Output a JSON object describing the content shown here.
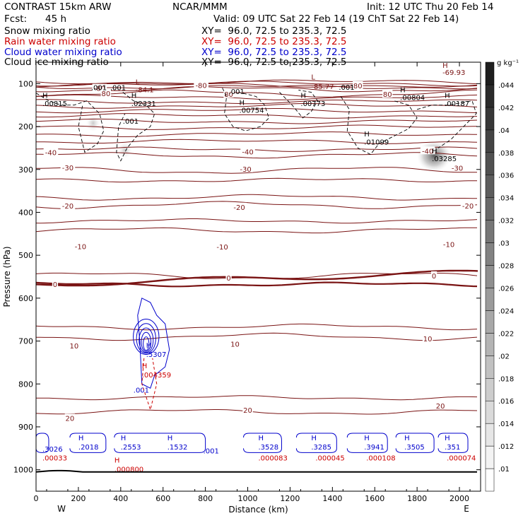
{
  "header": {
    "title": "CONTRAST 15km ARW",
    "center": "NCAR/MMM",
    "init": "Init: 12 UTC Thu 20 Feb 14",
    "fcst_label": "Fcst:",
    "fcst_value": "45 h",
    "valid": "Valid: 09 UTC Sat 22 Feb 14 (19 ChT Sat 22 Feb 14)"
  },
  "fields": [
    {
      "name": "Snow mixing ratio",
      "xy": "XY=  96.0, 72.5 to 235.3, 72.5",
      "color": "#000000"
    },
    {
      "name": "Rain water mixing ratio",
      "xy": "XY=  96.0, 72.5 to 235.3, 72.5",
      "color": "#cc0000"
    },
    {
      "name": "Cloud water mixing ratio",
      "xy": "XY=  96.0, 72.5 to 235.3, 72.5",
      "color": "#0000cc"
    },
    {
      "name": "Cloud ice mixing ratio",
      "xy": "XY=  96.0, 72.5 to 235.3, 72.5",
      "color": "#000000"
    }
  ],
  "chart_data": {
    "type": "cross-section",
    "xlabel": "Distance (km)",
    "ylabel": "Pressure (hPa)",
    "xlim": [
      0,
      2100
    ],
    "ylim": [
      1050,
      50
    ],
    "x_ticks": [
      0,
      200,
      400,
      600,
      800,
      1000,
      1200,
      1400,
      1600,
      1800,
      2000
    ],
    "y_ticks": [
      100,
      200,
      300,
      400,
      500,
      600,
      700,
      800,
      900,
      1000
    ],
    "left_end_label": "W",
    "right_end_label": "E",
    "colorbar": {
      "unit": "g kg⁻¹",
      "levels": [
        0.01,
        0.012,
        0.014,
        0.016,
        0.018,
        0.02,
        0.022,
        0.024,
        0.026,
        0.028,
        0.03,
        0.032,
        0.034,
        0.036,
        0.038,
        0.04,
        0.042,
        0.044
      ],
      "labels": [
        ".01",
        ".012",
        ".014",
        ".016",
        ".018",
        ".02",
        ".022",
        ".024",
        ".026",
        ".028",
        ".03",
        ".032",
        ".034",
        ".036",
        ".038",
        ".04",
        ".042",
        ".044"
      ]
    },
    "temperature_isotherms": [
      {
        "label": "-80",
        "p": 108
      },
      {
        "label": "-80",
        "p": 113
      },
      {
        "label": "-80",
        "p": 123
      },
      {
        "label": "-40",
        "p": 253
      },
      {
        "label": "-40",
        "p": 267
      },
      {
        "label": "-30",
        "p": 302
      },
      {
        "label": "-30",
        "p": 325
      },
      {
        "label": "-20",
        "p": 365
      },
      {
        "label": "-20",
        "p": 383
      },
      {
        "label": "-10",
        "p": 420
      },
      {
        "label": "-10",
        "p": 442
      },
      {
        "label": "0",
        "p": 548
      },
      {
        "label": "0",
        "p": 568
      },
      {
        "label": "10",
        "p": 667
      },
      {
        "label": "10",
        "p": 690
      },
      {
        "label": "20",
        "p": 832
      },
      {
        "label": "20",
        "p": 865
      }
    ],
    "isotherm_labels": [
      {
        "text": "-80",
        "x": 300,
        "p": 112
      },
      {
        "text": "-80",
        "x": 780,
        "p": 105
      },
      {
        "text": "80",
        "x": 330,
        "p": 124
      },
      {
        "text": "80",
        "x": 910,
        "p": 126
      },
      {
        "text": "80",
        "x": 1520,
        "p": 106
      },
      {
        "text": "80",
        "x": 1660,
        "p": 126
      },
      {
        "text": "-40",
        "x": 70,
        "p": 262
      },
      {
        "text": "-40",
        "x": 1000,
        "p": 260
      },
      {
        "text": "-40",
        "x": 1850,
        "p": 258
      },
      {
        "text": "-30",
        "x": 150,
        "p": 297
      },
      {
        "text": "-30",
        "x": 990,
        "p": 300
      },
      {
        "text": "-30",
        "x": 1990,
        "p": 298
      },
      {
        "text": "-20",
        "x": 150,
        "p": 386
      },
      {
        "text": "-20",
        "x": 960,
        "p": 389
      },
      {
        "text": "-20",
        "x": 2040,
        "p": 386
      },
      {
        "text": "-10",
        "x": 210,
        "p": 481
      },
      {
        "text": "-10",
        "x": 880,
        "p": 482
      },
      {
        "text": "-10",
        "x": 1950,
        "p": 476
      },
      {
        "text": "0",
        "x": 90,
        "p": 569
      },
      {
        "text": "0",
        "x": 910,
        "p": 554
      },
      {
        "text": "0",
        "x": 1880,
        "p": 549
      },
      {
        "text": "10",
        "x": 180,
        "p": 712
      },
      {
        "text": "10",
        "x": 940,
        "p": 708
      },
      {
        "text": "10",
        "x": 1850,
        "p": 696
      },
      {
        "text": "20",
        "x": 160,
        "p": 881
      },
      {
        "text": "20",
        "x": 1000,
        "p": 862
      },
      {
        "text": "20",
        "x": 1910,
        "p": 852
      }
    ],
    "snow_maxima": [
      {
        "text": "H",
        "x": 30,
        "p": 133,
        "v": ".00815",
        "vp": 152
      },
      {
        "text": "H",
        "x": 450,
        "p": 133,
        "v": ".02331",
        "vp": 152
      },
      {
        "text": "H",
        "x": 960,
        "p": 150,
        "v": ".00754",
        "vp": 168
      },
      {
        "text": "H",
        "x": 1250,
        "p": 133,
        "v": ".00773",
        "vp": 152
      },
      {
        "text": "H",
        "x": 1720,
        "p": 120,
        "v": ".00804",
        "vp": 138
      },
      {
        "text": "H",
        "x": 1930,
        "p": 133,
        "v": ".00187",
        "vp": 152
      },
      {
        "text": "H",
        "x": 1550,
        "p": 223,
        "v": ".01099",
        "vp": 242
      }
    ],
    "snow_value_labels": [
      {
        "text": ".001",
        "x": 260,
        "p": 115
      },
      {
        "text": ".001",
        "x": 350,
        "p": 115
      },
      {
        "text": ".001",
        "x": 910,
        "p": 124
      },
      {
        "text": ".001",
        "x": 1430,
        "p": 114
      },
      {
        "text": ".001",
        "x": 410,
        "p": 193
      }
    ],
    "upper_extrema": [
      {
        "text": "L",
        "x": 470,
        "p": 102,
        "v": "-84.1",
        "vp": 120
      },
      {
        "text": "L",
        "x": 1300,
        "p": 90,
        "v": "-85.77",
        "vp": 113
      },
      {
        "text": "H",
        "x": 1920,
        "p": 63,
        "v": "-69.93",
        "vp": 80
      }
    ],
    "ice_maximum": {
      "text": "H",
      "x": 1870,
      "p": 272,
      "v": ".03285"
    },
    "ice_contour_label": {
      "text": "-40",
      "x": 1850,
      "p": 258
    },
    "rain_maxima": [
      {
        "text": "H",
        "x": 500,
        "p": 770,
        "v": ".004359"
      },
      {
        "text": "H",
        "x": 370,
        "p": 990,
        "v": ".000800"
      }
    ],
    "cloud_water_maxima": [
      {
        "text": "H",
        "x": 520,
        "p": 722,
        "v": ".5307"
      },
      {
        "text": "H",
        "x": 200,
        "p": 938,
        "v": ".2018"
      },
      {
        "text": "H",
        "x": 400,
        "p": 938,
        "v": ".2553"
      },
      {
        "text": "H",
        "x": 620,
        "p": 938,
        "v": ".1532"
      },
      {
        "text": "H",
        "x": 1050,
        "p": 938,
        "v": ".3528"
      },
      {
        "text": "H",
        "x": 1300,
        "p": 938,
        "v": ".3285"
      },
      {
        "text": "H",
        "x": 1550,
        "p": 938,
        "v": ".3941"
      },
      {
        "text": "H",
        "x": 1740,
        "p": 938,
        "v": ".3505"
      },
      {
        "text": "H",
        "x": 1930,
        "p": 938,
        "v": ".351"
      }
    ],
    "cloud_water_value_labels": [
      {
        "text": ".3026",
        "x": 30,
        "p": 958
      },
      {
        "text": ".001",
        "x": 460,
        "p": 820
      },
      {
        "text": ".001",
        "x": 790,
        "p": 962
      }
    ],
    "rain_value_labels": [
      {
        "text": ".00033",
        "x": 30,
        "p": 978
      },
      {
        "text": ".000083",
        "x": 1050,
        "p": 978
      },
      {
        "text": ".000045",
        "x": 1320,
        "p": 978
      },
      {
        "text": ".000108",
        "x": 1560,
        "p": 978
      },
      {
        "text": ".000074",
        "x": 1940,
        "p": 978
      }
    ],
    "surface_pressure_line_p": 1005
  }
}
